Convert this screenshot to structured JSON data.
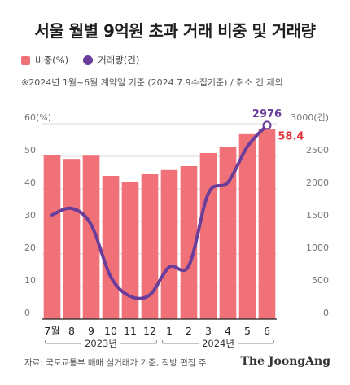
{
  "title": "서울 월별 9억원 초과 거래 비중 및 거래량",
  "legend": {
    "share_label": "비중(%)",
    "volume_label": "거래량(건)"
  },
  "note": "※2024년 1월~6월 계약일 기준 (2024.7.9수집기준) / 취소 건 제외",
  "source": "자료: 국토교통부 매매 실거래가 기준, 직방 편집 주",
  "brand": "The JoongAng",
  "colors": {
    "bar": "#f07178",
    "line": "#6a3d9a",
    "highlight_value": "#e8323c",
    "line_value": "#6a3d9a"
  },
  "chart_data": {
    "type": "bar",
    "categories": [
      "7월",
      "8",
      "9",
      "10",
      "11",
      "12",
      "1",
      "2",
      "3",
      "4",
      "5",
      "6"
    ],
    "year_labels": [
      {
        "label": "2023년",
        "from": 0,
        "to": 5
      },
      {
        "label": "2024년",
        "from": 6,
        "to": 11
      }
    ],
    "series": [
      {
        "name": "비중(%)",
        "type": "bar",
        "axis": "left",
        "values": [
          50.5,
          49.2,
          50.2,
          44.0,
          42.0,
          44.5,
          45.8,
          47.0,
          51.0,
          53.0,
          56.8,
          58.4
        ]
      },
      {
        "name": "거래량(건)",
        "type": "line",
        "axis": "right",
        "values": [
          1600,
          1700,
          1450,
          650,
          350,
          370,
          800,
          820,
          1930,
          2100,
          2650,
          2976
        ]
      }
    ],
    "left_axis": {
      "label": "60(%)",
      "ylim": [
        0,
        60
      ],
      "ticks": [
        "0",
        "10",
        "20",
        "30",
        "40",
        "50"
      ]
    },
    "right_axis": {
      "label": "3000(건)",
      "ylim": [
        0,
        3000
      ],
      "ticks": [
        "0",
        "500",
        "1000",
        "1500",
        "2000",
        "2500"
      ]
    },
    "annotations": [
      {
        "series": "거래량(건)",
        "index": 11,
        "text": "2976"
      },
      {
        "series": "비중(%)",
        "index": 11,
        "text": "58.4"
      }
    ],
    "grid": true
  }
}
